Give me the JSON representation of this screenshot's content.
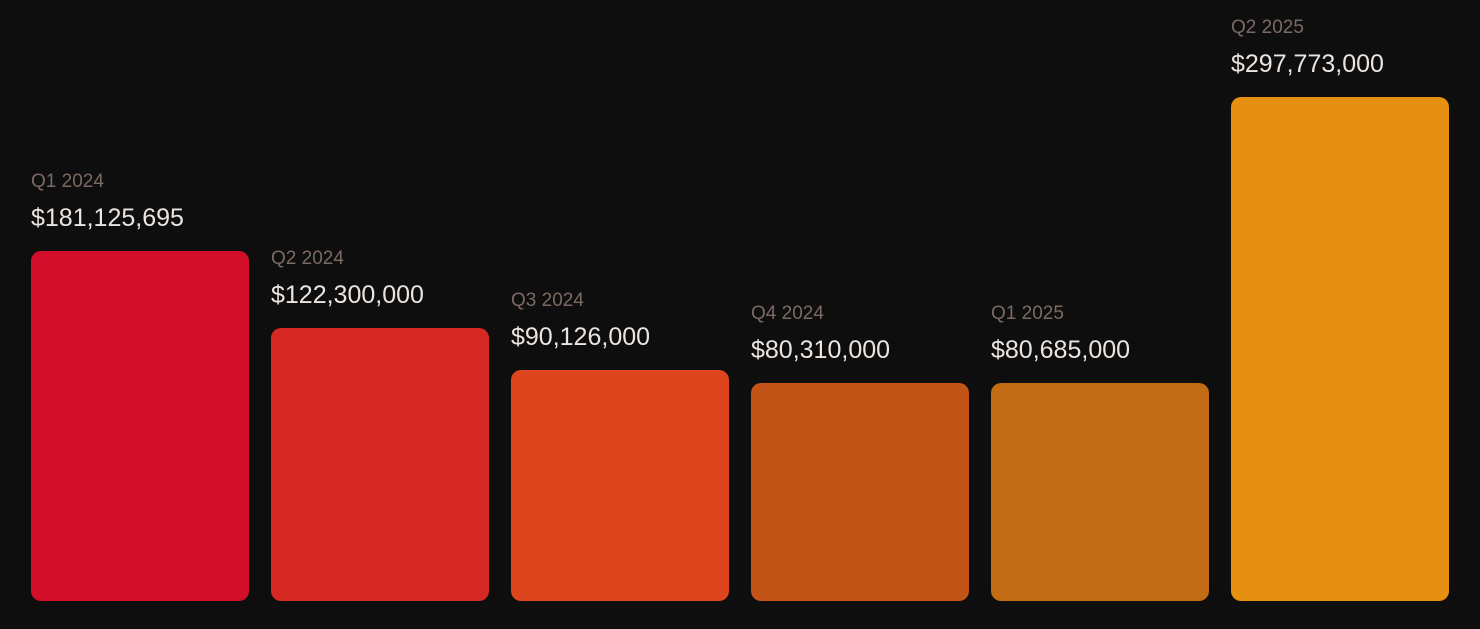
{
  "chart_data": {
    "type": "bar",
    "title": "",
    "xlabel": "",
    "ylabel": "",
    "categories": [
      "Q1 2024",
      "Q2 2024",
      "Q3 2024",
      "Q4 2024",
      "Q1 2025",
      "Q2 2025"
    ],
    "values": [
      181125695,
      122300000,
      90126000,
      80310000,
      80685000,
      297773000
    ],
    "value_labels": [
      "$181,125,695",
      "$122,300,000",
      "$90,126,000",
      "$80,310,000",
      "$80,685,000",
      "$297,773,000"
    ],
    "colors": [
      "#d20e2b",
      "#d72923",
      "#dc451e",
      "#c25418",
      "#c26c15",
      "#e69012"
    ],
    "grid": false,
    "legend": "none"
  }
}
